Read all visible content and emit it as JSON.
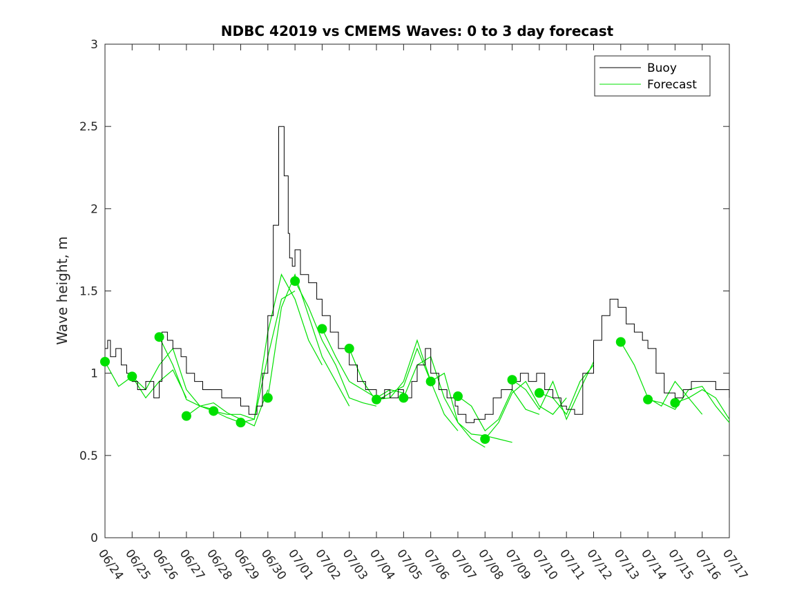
{
  "chart_data": {
    "type": "line",
    "title": "NDBC 42019 vs CMEMS Waves: 0 to 3 day forecast",
    "xlabel": "",
    "ylabel": "Wave height, m",
    "ylim": [
      0,
      3
    ],
    "yticks": [
      "0",
      "0.5",
      "1",
      "1.5",
      "2",
      "2.5",
      "3"
    ],
    "ytick_values": [
      0,
      0.5,
      1,
      1.5,
      2,
      2.5,
      3
    ],
    "xlim_days": [
      0,
      23
    ],
    "xtick_labels": [
      "06/24",
      "06/25",
      "06/26",
      "06/27",
      "06/28",
      "06/29",
      "06/30",
      "07/01",
      "07/02",
      "07/03",
      "07/04",
      "07/05",
      "07/06",
      "07/07",
      "07/08",
      "07/09",
      "07/10",
      "07/11",
      "07/12",
      "07/13",
      "07/14",
      "07/15",
      "07/16",
      "07/17"
    ],
    "grid": false,
    "legend": {
      "placement": "top-right",
      "entries": [
        {
          "label": "Buoy",
          "color": "#000000"
        },
        {
          "label": "Forecast",
          "color": "#00e000"
        }
      ]
    },
    "buoy": {
      "name": "Buoy",
      "color": "#000000",
      "x": [
        0,
        0.1,
        0.2,
        0.4,
        0.6,
        0.8,
        1.0,
        1.2,
        1.5,
        1.8,
        2.0,
        2.1,
        2.3,
        2.5,
        2.8,
        3.0,
        3.3,
        3.6,
        4.0,
        4.3,
        4.6,
        5.0,
        5.3,
        5.6,
        5.8,
        6.0,
        6.2,
        6.4,
        6.6,
        6.75,
        6.8,
        6.9,
        7.0,
        7.2,
        7.5,
        7.8,
        8.0,
        8.3,
        8.6,
        9.0,
        9.3,
        9.6,
        10.0,
        10.3,
        10.5,
        10.8,
        11.0,
        11.3,
        11.5,
        11.8,
        12.0,
        12.3,
        12.6,
        12.9,
        13.0,
        13.3,
        13.6,
        14.0,
        14.3,
        14.6,
        15.0,
        15.3,
        15.6,
        15.9,
        16.2,
        16.5,
        16.8,
        17.0,
        17.3,
        17.6,
        18.0,
        18.3,
        18.6,
        18.9,
        19.2,
        19.5,
        19.8,
        20.0,
        20.3,
        20.6,
        21.0,
        21.3,
        21.6,
        22.0,
        22.5,
        23.0
      ],
      "values": [
        1.15,
        1.2,
        1.1,
        1.15,
        1.05,
        1.0,
        0.95,
        0.9,
        0.95,
        0.85,
        0.95,
        1.25,
        1.2,
        1.15,
        1.1,
        1.0,
        0.95,
        0.9,
        0.9,
        0.85,
        0.85,
        0.8,
        0.75,
        0.8,
        1.0,
        1.35,
        1.9,
        2.5,
        2.2,
        1.85,
        1.7,
        1.65,
        1.75,
        1.6,
        1.55,
        1.45,
        1.35,
        1.25,
        1.15,
        1.05,
        0.95,
        0.9,
        0.85,
        0.9,
        0.85,
        0.9,
        0.85,
        0.95,
        1.05,
        1.15,
        1.0,
        0.9,
        0.85,
        0.8,
        0.75,
        0.7,
        0.72,
        0.75,
        0.85,
        0.9,
        0.95,
        1.0,
        0.95,
        1.0,
        0.9,
        0.85,
        0.8,
        0.78,
        0.75,
        1.0,
        1.2,
        1.35,
        1.45,
        1.4,
        1.3,
        1.25,
        1.2,
        1.15,
        1.0,
        0.88,
        0.85,
        0.9,
        0.95,
        0.95,
        0.9,
        0.85
      ]
    },
    "forecast_runs": [
      {
        "x": [
          0,
          0.5,
          1,
          1.5,
          2,
          2.5,
          3
        ],
        "values": [
          1.07,
          0.92,
          0.98,
          0.85,
          0.95,
          1.02,
          0.85
        ]
      },
      {
        "x": [
          1,
          1.5,
          2,
          2.5,
          3,
          3.5,
          4
        ],
        "values": [
          0.98,
          0.9,
          1.05,
          1.15,
          0.9,
          0.8,
          0.78
        ]
      },
      {
        "x": [
          2,
          2.5,
          3,
          3.5,
          4,
          4.5,
          5
        ],
        "values": [
          1.22,
          1.05,
          0.84,
          0.8,
          0.77,
          0.73,
          0.7
        ]
      },
      {
        "x": [
          3,
          3.5,
          4,
          4.5,
          5,
          5.5,
          6
        ],
        "values": [
          0.74,
          0.8,
          0.82,
          0.76,
          0.72,
          0.68,
          0.9
        ]
      },
      {
        "x": [
          4,
          4.5,
          5,
          5.5,
          6,
          6.5,
          7
        ],
        "values": [
          0.77,
          0.75,
          0.75,
          0.72,
          1.1,
          1.45,
          1.5
        ]
      },
      {
        "x": [
          5,
          5.5,
          6,
          6.5,
          7,
          7.5,
          8
        ],
        "values": [
          0.7,
          0.72,
          1.25,
          1.6,
          1.45,
          1.2,
          1.05
        ]
      },
      {
        "x": [
          6,
          6.5,
          7,
          7.5,
          8,
          8.5,
          9
        ],
        "values": [
          0.85,
          1.4,
          1.6,
          1.35,
          1.1,
          0.95,
          0.8
        ]
      },
      {
        "x": [
          7,
          7.5,
          8,
          8.5,
          9,
          9.5,
          10
        ],
        "values": [
          1.56,
          1.4,
          1.2,
          1.05,
          0.85,
          0.82,
          0.8
        ]
      },
      {
        "x": [
          8,
          8.5,
          9,
          9.5,
          10,
          10.5,
          11
        ],
        "values": [
          1.27,
          1.1,
          0.95,
          0.9,
          0.85,
          0.9,
          0.88
        ]
      },
      {
        "x": [
          9,
          9.5,
          10,
          10.5,
          11,
          11.5,
          12
        ],
        "values": [
          1.15,
          0.95,
          0.83,
          0.88,
          0.92,
          1.15,
          0.95
        ]
      },
      {
        "x": [
          10,
          10.5,
          11,
          11.5,
          12,
          12.5,
          13
        ],
        "values": [
          0.84,
          0.85,
          0.95,
          1.2,
          0.95,
          0.75,
          0.65
        ]
      },
      {
        "x": [
          11,
          11.5,
          12,
          12.5,
          13,
          13.5,
          14
        ],
        "values": [
          0.85,
          1.05,
          1.1,
          0.85,
          0.7,
          0.6,
          0.55
        ]
      },
      {
        "x": [
          12,
          12.5,
          13,
          13.5,
          14,
          14.5,
          15
        ],
        "values": [
          0.95,
          1.0,
          0.7,
          0.63,
          0.62,
          0.6,
          0.58
        ]
      },
      {
        "x": [
          13,
          13.5,
          14,
          14.5,
          15,
          15.5,
          16
        ],
        "values": [
          0.86,
          0.8,
          0.65,
          0.72,
          0.9,
          0.78,
          0.75
        ]
      },
      {
        "x": [
          14,
          14.5,
          15,
          15.5,
          16,
          16.5,
          17
        ],
        "values": [
          0.6,
          0.7,
          0.88,
          0.95,
          0.8,
          0.75,
          0.85
        ]
      },
      {
        "x": [
          15,
          15.5,
          16,
          16.5,
          17,
          17.5,
          18
        ],
        "values": [
          0.96,
          0.9,
          0.78,
          0.95,
          0.72,
          0.9,
          1.07
        ]
      },
      {
        "x": [
          16,
          16.5,
          17,
          17.5,
          18
        ],
        "values": [
          0.88,
          0.85,
          0.75,
          0.95,
          1.05
        ]
      },
      {
        "x": [
          19,
          19.5,
          20,
          20.5,
          21,
          21.5,
          22
        ],
        "values": [
          1.19,
          1.05,
          0.85,
          0.8,
          0.95,
          0.85,
          0.75
        ]
      },
      {
        "x": [
          20,
          20.5,
          21,
          21.5,
          22,
          22.5,
          23
        ],
        "values": [
          0.84,
          0.82,
          0.78,
          0.9,
          0.92,
          0.8,
          0.7
        ]
      },
      {
        "x": [
          21,
          21.5,
          22,
          22.5,
          23
        ],
        "values": [
          0.82,
          0.85,
          0.9,
          0.85,
          0.72
        ]
      }
    ],
    "forecast_markers": {
      "x": [
        0,
        1,
        2,
        3,
        4,
        5,
        6,
        7,
        8,
        9,
        10,
        11,
        12,
        13,
        14,
        15,
        16,
        19,
        20,
        21
      ],
      "values": [
        1.07,
        0.98,
        1.22,
        0.74,
        0.77,
        0.7,
        0.85,
        1.56,
        1.27,
        1.15,
        0.84,
        0.85,
        0.95,
        0.86,
        0.6,
        0.96,
        0.88,
        1.19,
        0.84,
        0.82
      ]
    }
  }
}
